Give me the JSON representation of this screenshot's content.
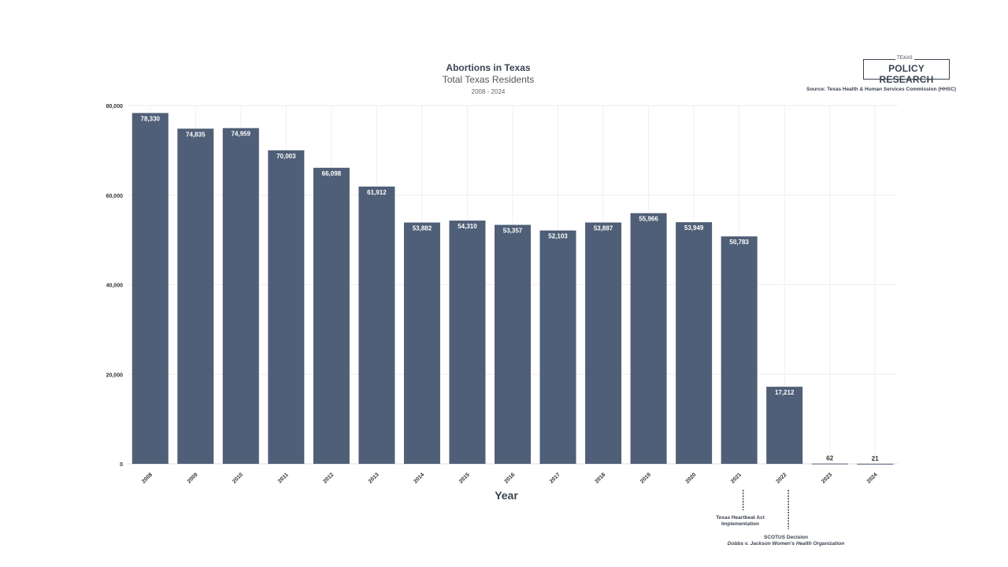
{
  "chart_data": {
    "type": "bar",
    "title": "Abortions in Texas",
    "subtitle": "Total Texas Residents",
    "date_range": "2008 - 2024",
    "xlabel": "Year",
    "ylabel": "",
    "categories": [
      "2008",
      "2009",
      "2010",
      "2011",
      "2012",
      "2013",
      "2014",
      "2015",
      "2016",
      "2017",
      "2018",
      "2019",
      "2020",
      "2021",
      "2022",
      "2023",
      "2024"
    ],
    "values": [
      78330,
      74835,
      74959,
      70003,
      66098,
      61912,
      53882,
      54310,
      53357,
      52103,
      53887,
      55966,
      53949,
      50783,
      17212,
      62,
      21
    ],
    "data_labels": [
      "78,330",
      "74,835",
      "74,959",
      "70,003",
      "66,098",
      "61,912",
      "53,882",
      "54,310",
      "53,357",
      "52,103",
      "53,887",
      "55,966",
      "53,949",
      "50,783",
      "17,212",
      "62",
      "21"
    ],
    "ylim": [
      0,
      80000
    ],
    "yticks": [
      0,
      20000,
      40000,
      60000,
      80000
    ],
    "ytick_labels": [
      "0",
      "20,000",
      "40,000",
      "60,000",
      "80,000"
    ],
    "grid": true,
    "bar_color": "#4f5f77",
    "annotations": [
      {
        "year": "2021",
        "lines": [
          "Texas Heartbeat Act",
          "Implementation"
        ]
      },
      {
        "year": "2022",
        "lines": [
          "SCOTUS Decision",
          "Dobbs v. Jackson Women's Health Organization"
        ]
      }
    ]
  },
  "branding": {
    "logo_top": "TEXAS",
    "logo_main": "POLICY RESEARCH",
    "source": "Source: Texas Health & Human Services Commission (HHSC)"
  }
}
